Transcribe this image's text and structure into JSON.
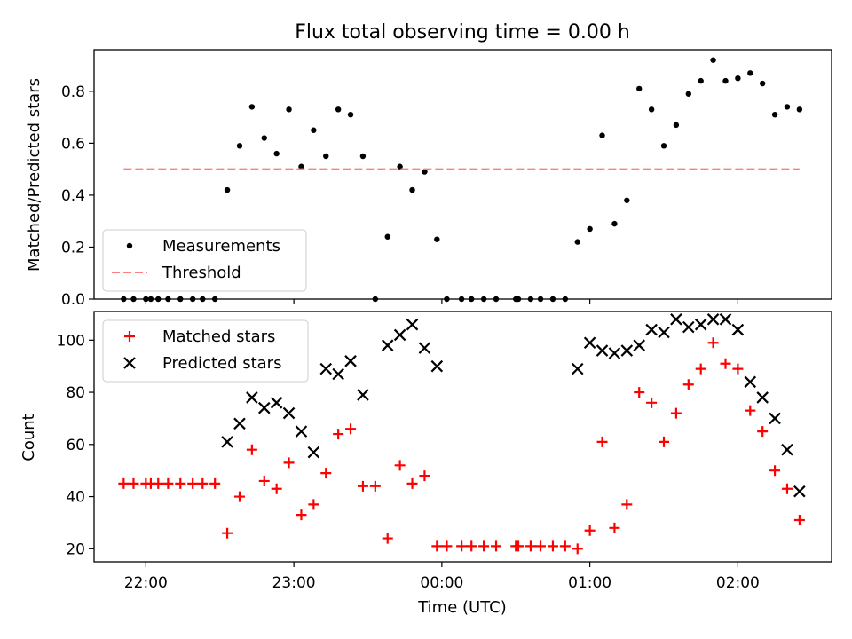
{
  "figure": {
    "title": "Flux total observing time = 0.00 h",
    "xlabel": "Time (UTC)",
    "xticks": [
      "22:00",
      "23:00",
      "00:00",
      "01:00",
      "02:00"
    ]
  },
  "colors": {
    "measurement": "#000000",
    "threshold": "#ff7f7f",
    "matched": "#ff0000",
    "predicted": "#000000"
  },
  "chart_data": [
    {
      "type": "scatter",
      "ylabel": "Matched/Predicted stars",
      "xlim": [
        "21:39",
        "02:38"
      ],
      "ylim": [
        0,
        0.96
      ],
      "yticks": [
        "0.0",
        "0.2",
        "0.4",
        "0.6",
        "0.8"
      ],
      "legend_position": "lower-left",
      "series": [
        {
          "name": "Measurements",
          "marker": "dot",
          "x": [
            "21:51",
            "21:55",
            "22:00",
            "22:02",
            "22:05",
            "22:09",
            "22:14",
            "22:19",
            "22:23",
            "22:28",
            "22:33",
            "22:38",
            "22:43",
            "22:48",
            "22:53",
            "22:58",
            "23:03",
            "23:08",
            "23:13",
            "23:18",
            "23:23",
            "23:28",
            "23:33",
            "23:38",
            "23:43",
            "23:48",
            "23:53",
            "23:58",
            "00:02",
            "00:08",
            "00:12",
            "00:17",
            "00:22",
            "00:30",
            "00:31",
            "00:36",
            "00:40",
            "00:45",
            "00:50",
            "00:55",
            "01:00",
            "01:05",
            "01:10",
            "01:15",
            "01:20",
            "01:25",
            "01:30",
            "01:35",
            "01:40",
            "01:45",
            "01:50",
            "01:55",
            "02:00",
            "02:05",
            "02:10",
            "02:15",
            "02:20",
            "02:25"
          ],
          "y": [
            0.0,
            0.0,
            0.0,
            0.0,
            0.0,
            0.0,
            0.0,
            0.0,
            0.0,
            0.0,
            0.42,
            0.59,
            0.74,
            0.62,
            0.56,
            0.73,
            0.51,
            0.65,
            0.55,
            0.73,
            0.71,
            0.55,
            0.0,
            0.24,
            0.51,
            0.42,
            0.49,
            0.23,
            0.0,
            0.0,
            0.0,
            0.0,
            0.0,
            0.0,
            0.0,
            0.0,
            0.0,
            0.0,
            0.0,
            0.22,
            0.27,
            0.63,
            0.29,
            0.38,
            0.81,
            0.73,
            0.59,
            0.67,
            0.79,
            0.84,
            0.92,
            0.84,
            0.85,
            0.87,
            0.83,
            0.71,
            0.74,
            0.73
          ]
        },
        {
          "name": "Threshold",
          "style": "dashed",
          "x": [
            "21:51",
            "02:25"
          ],
          "y": [
            0.5,
            0.5
          ]
        }
      ]
    },
    {
      "type": "scatter",
      "ylabel": "Count",
      "xlim": [
        "21:39",
        "02:38"
      ],
      "ylim": [
        15,
        111
      ],
      "yticks": [
        "20",
        "40",
        "60",
        "80",
        "100"
      ],
      "legend_position": "upper-left",
      "series": [
        {
          "name": "Matched stars",
          "marker": "plus",
          "x": [
            "21:51",
            "21:55",
            "22:00",
            "22:02",
            "22:05",
            "22:09",
            "22:14",
            "22:19",
            "22:23",
            "22:28",
            "22:33",
            "22:38",
            "22:43",
            "22:48",
            "22:53",
            "22:58",
            "23:03",
            "23:08",
            "23:13",
            "23:18",
            "23:23",
            "23:28",
            "23:33",
            "23:38",
            "23:43",
            "23:48",
            "23:53",
            "23:58",
            "00:02",
            "00:08",
            "00:12",
            "00:17",
            "00:22",
            "00:30",
            "00:31",
            "00:36",
            "00:40",
            "00:45",
            "00:50",
            "00:55",
            "01:00",
            "01:05",
            "01:10",
            "01:15",
            "01:20",
            "01:25",
            "01:30",
            "01:35",
            "01:40",
            "01:45",
            "01:50",
            "01:55",
            "02:00",
            "02:05",
            "02:10",
            "02:15",
            "02:20",
            "02:25"
          ],
          "y": [
            45,
            45,
            45,
            45,
            45,
            45,
            45,
            45,
            45,
            45,
            26,
            40,
            58,
            46,
            43,
            53,
            33,
            37,
            49,
            64,
            66,
            44,
            44,
            24,
            52,
            45,
            48,
            21,
            21,
            21,
            21,
            21,
            21,
            21,
            21,
            21,
            21,
            21,
            21,
            20,
            27,
            61,
            28,
            37,
            80,
            76,
            61,
            72,
            83,
            89,
            99,
            91,
            89,
            73,
            65,
            50,
            43,
            31
          ]
        },
        {
          "name": "Predicted stars",
          "marker": "x",
          "x": [
            "22:33",
            "22:38",
            "22:43",
            "22:48",
            "22:53",
            "22:58",
            "23:03",
            "23:08",
            "23:13",
            "23:18",
            "23:23",
            "23:28",
            "23:38",
            "23:43",
            "23:48",
            "23:53",
            "23:58",
            "00:55",
            "01:00",
            "01:05",
            "01:10",
            "01:15",
            "01:20",
            "01:25",
            "01:30",
            "01:35",
            "01:40",
            "01:45",
            "01:50",
            "01:55",
            "02:00",
            "02:05",
            "02:10",
            "02:15",
            "02:20",
            "02:25"
          ],
          "y": [
            61,
            68,
            78,
            74,
            76,
            72,
            65,
            57,
            89,
            87,
            92,
            79,
            98,
            102,
            106,
            97,
            90,
            89,
            99,
            96,
            95,
            96,
            98,
            104,
            103,
            108,
            105,
            106,
            108,
            108,
            104,
            84,
            78,
            70,
            58,
            42
          ]
        }
      ]
    }
  ]
}
